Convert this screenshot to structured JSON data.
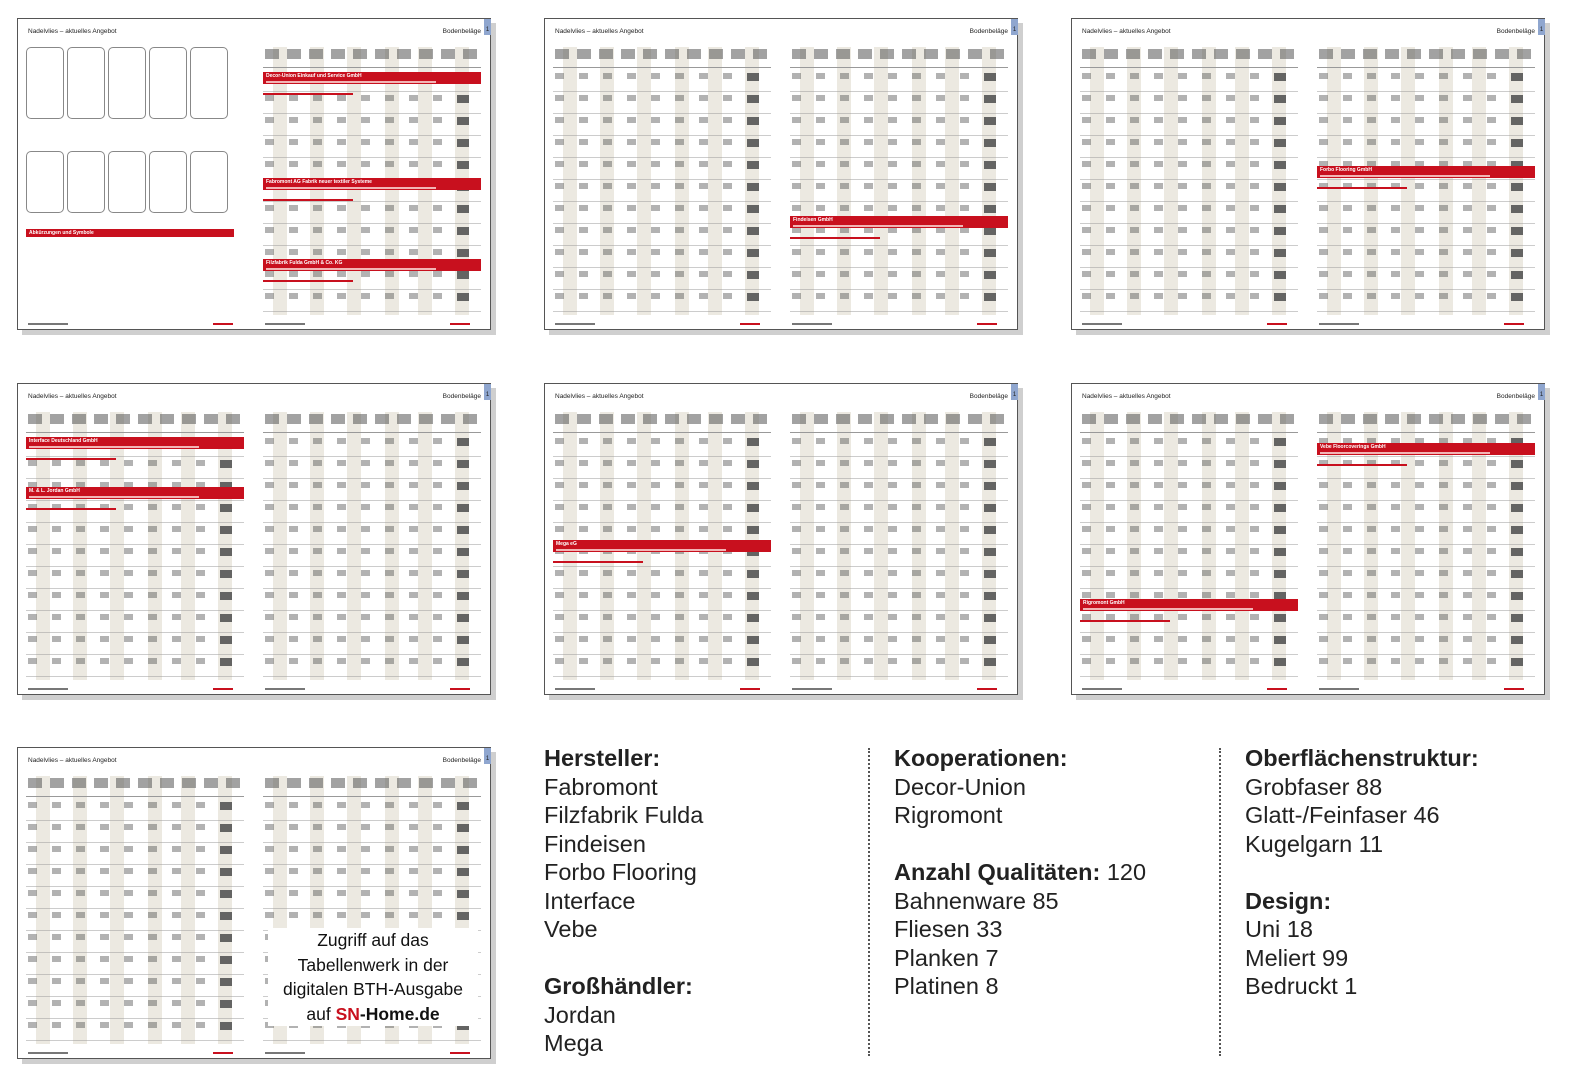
{
  "pages": {
    "left_header": "Nadelvlies – aktuelles Angebot",
    "right_header": "Bodenbeläge",
    "tab_number": "1",
    "legend_title": "Abkürzungen und Symbole"
  },
  "spreads": [
    {
      "left_bars": [],
      "right_bars": [
        "Decor-Union Einkauf und Service GmbH",
        "Fabromont AG Fabrik neuer textiler Systeme",
        "Filzfabrik Fulda GmbH & Co. KG"
      ]
    },
    {
      "left_bars": [],
      "right_bars": [
        "Findeisen GmbH"
      ]
    },
    {
      "left_bars": [],
      "right_bars": [
        "Forbo Flooring GmbH"
      ]
    },
    {
      "left_bars": [
        "Interface Deutschland GmbH",
        "M. & L. Jordan GmbH"
      ],
      "right_bars": []
    },
    {
      "left_bars": [
        "Mega eG"
      ],
      "right_bars": []
    },
    {
      "left_bars": [
        "Rigromont GmbH"
      ],
      "right_bars": [
        "Vebe Floorcoverings GmbH"
      ]
    },
    {
      "left_bars": [],
      "right_bars": []
    }
  ],
  "promo": {
    "line1": "Zugriff auf das",
    "line2": "Tabellenwerk in der",
    "line3": "digitalen BTH-Ausgabe",
    "line4_prefix": "auf ",
    "brand_red": "SN",
    "brand_rest": "-Home.de"
  },
  "summary": {
    "manufacturers": {
      "heading": "Hersteller:",
      "items": [
        "Fabromont",
        "Filzfabrik Fulda",
        "Findeisen",
        "Forbo Flooring",
        "Interface",
        "Vebe"
      ]
    },
    "wholesalers": {
      "heading": "Großhändler:",
      "items": [
        "Jordan",
        "Mega"
      ]
    },
    "cooperations": {
      "heading": "Kooperationen:",
      "items": [
        "Decor-Union",
        "Rigromont"
      ]
    },
    "qualities": {
      "heading": "Anzahl Qualitäten:",
      "total": "120",
      "items": [
        "Bahnenware 85",
        "Fliesen 33",
        "Planken 7",
        "Platinen 8"
      ]
    },
    "surface": {
      "heading": "Oberflächenstruktur:",
      "items": [
        "Grobfaser 88",
        "Glatt-/Feinfaser 46",
        "Kugelgarn 11"
      ]
    },
    "design": {
      "heading": "Design:",
      "items": [
        "Uni 18",
        "Meliert 99",
        "Bedruckt 1"
      ]
    }
  },
  "colors": {
    "accent_red": "#c8101e",
    "stripe": "#ece9e1",
    "tab_blue": "#8fa6cf"
  }
}
